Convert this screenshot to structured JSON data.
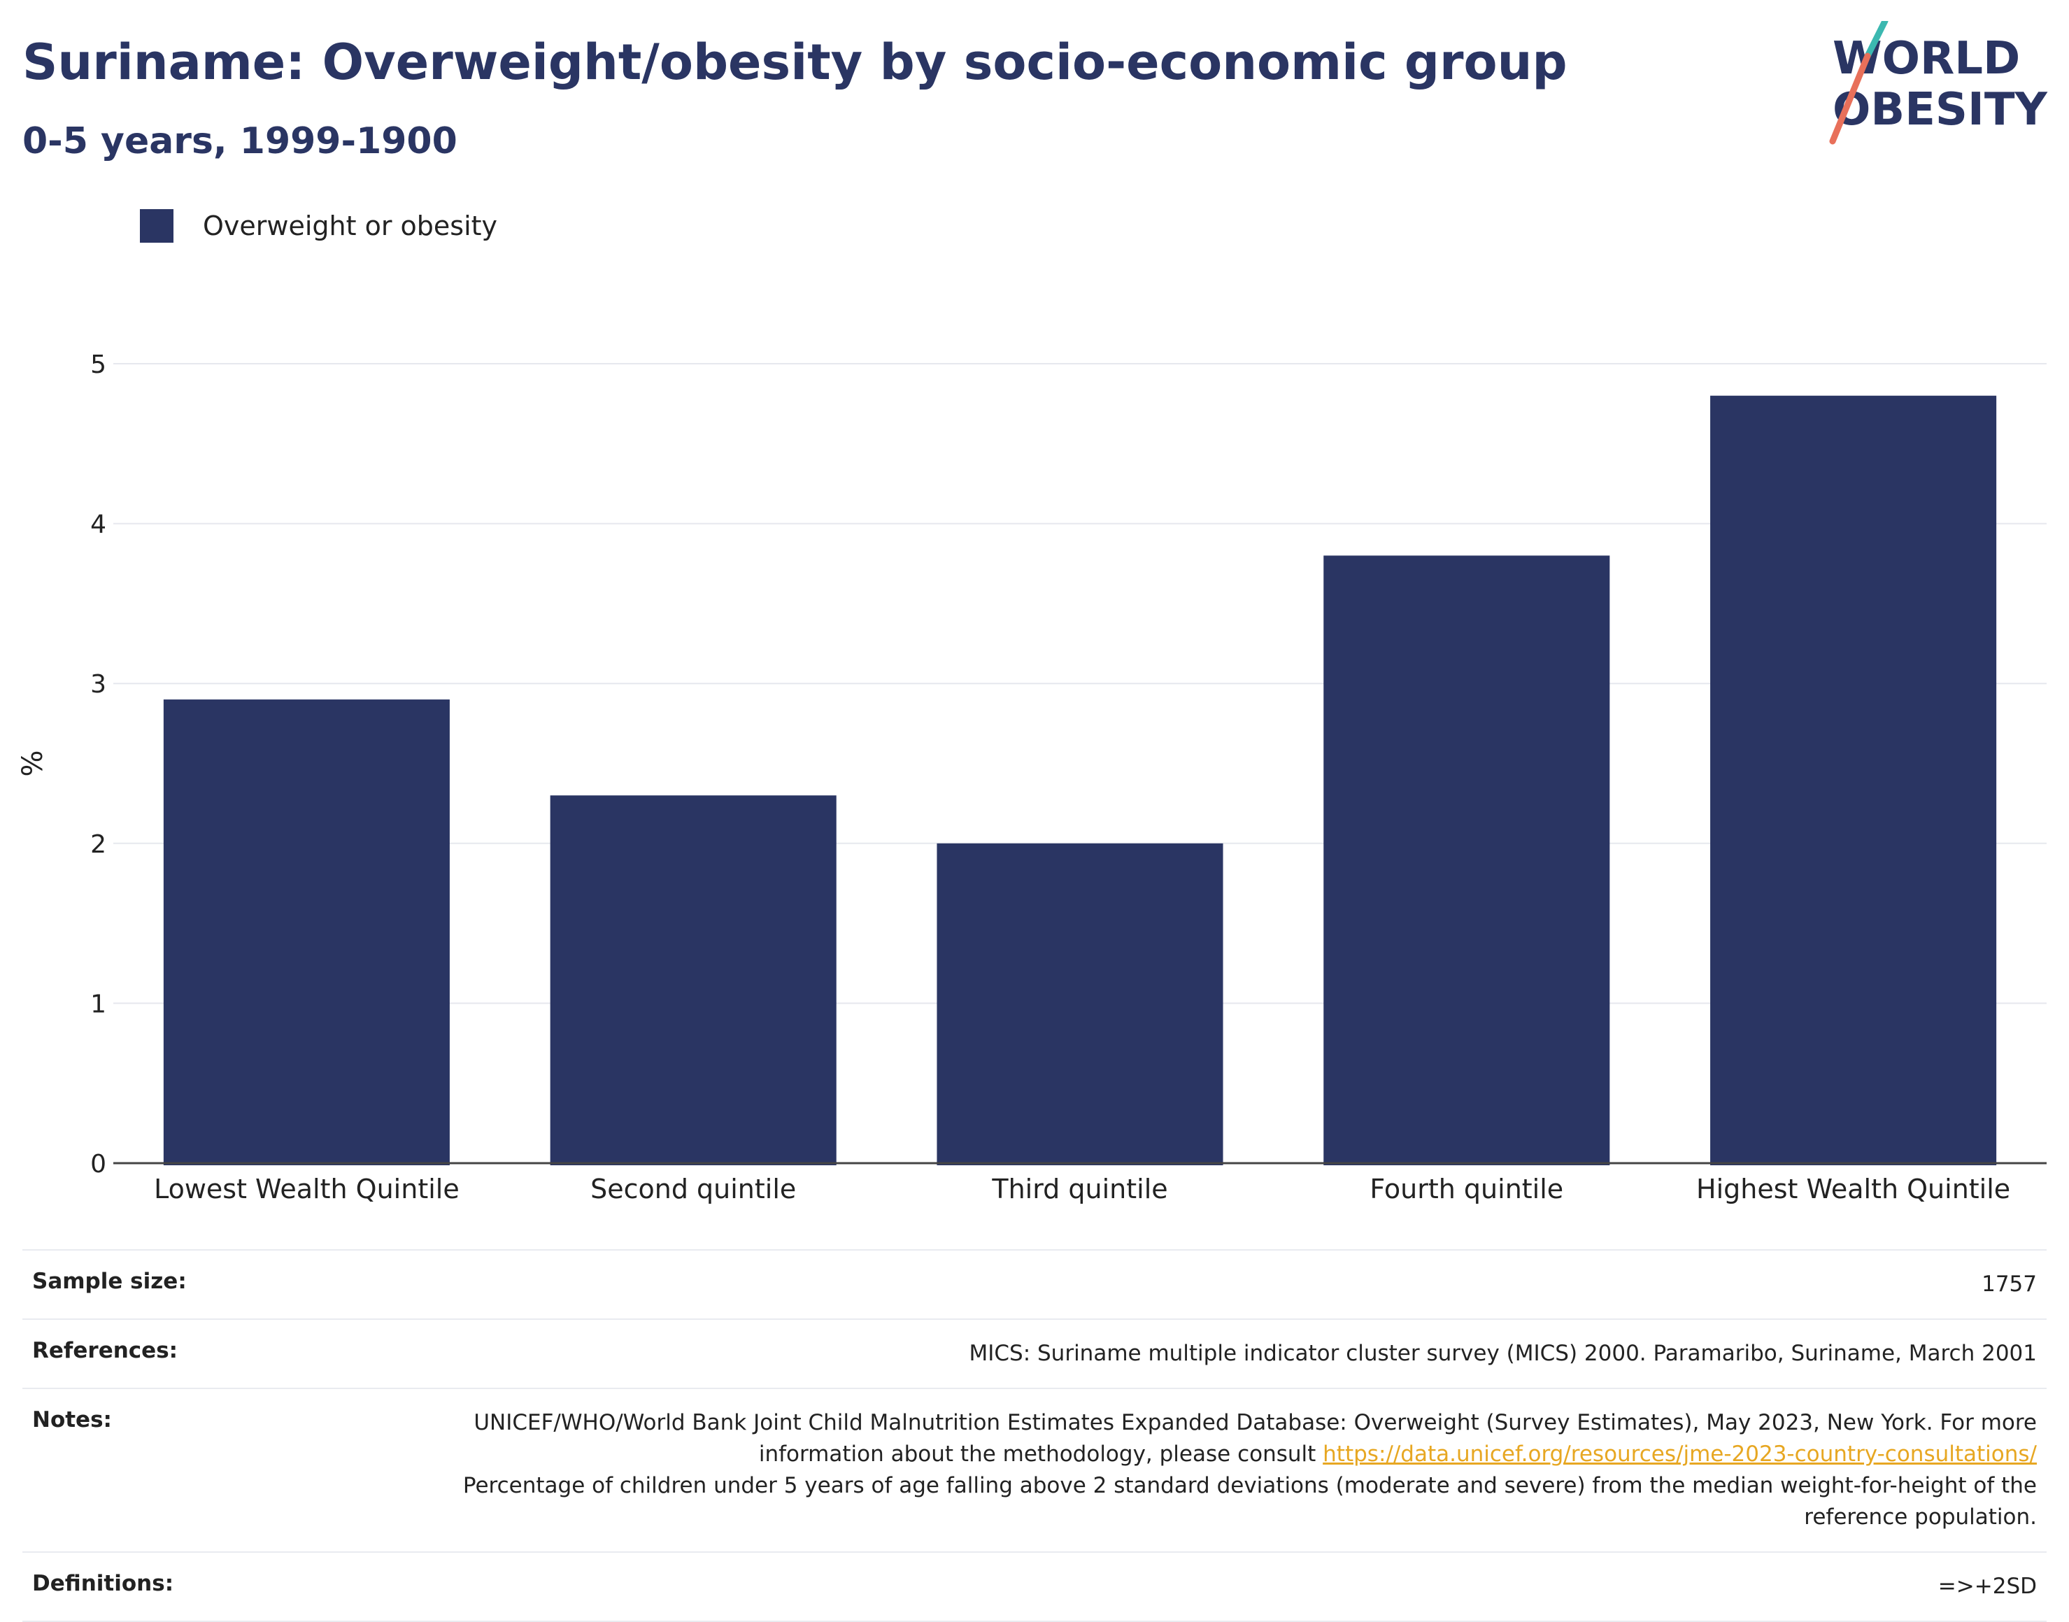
{
  "header": {
    "title": "Suriname: Overweight/obesity by socio-economic group",
    "subtitle": "0-5 years, 1999-1900"
  },
  "logo": {
    "line1": "WORLD",
    "line2": "OBESITY",
    "slash_colors": [
      "#3bb8b0",
      "#e8705a"
    ]
  },
  "legend": {
    "label": "Overweight or obesity",
    "color": "#2a3563"
  },
  "chart_data": {
    "type": "bar",
    "categories": [
      "Lowest Wealth Quintile",
      "Second quintile",
      "Third quintile",
      "Fourth quintile",
      "Highest Wealth Quintile"
    ],
    "series": [
      {
        "name": "Overweight or obesity",
        "values": [
          2.9,
          2.3,
          2.0,
          3.8,
          4.8
        ],
        "color": "#2a3563"
      }
    ],
    "ylabel": "%",
    "ylim": [
      0,
      5
    ],
    "yticks": [
      0,
      1,
      2,
      3,
      4,
      5
    ],
    "grid": true
  },
  "info": {
    "sample_size_label": "Sample size:",
    "sample_size_value": "1757",
    "references_label": "References:",
    "references_value": "MICS: Suriname multiple indicator cluster survey (MICS) 2000. Paramaribo, Suriname, March 2001",
    "notes_label": "Notes:",
    "notes_text_1": "UNICEF/WHO/World Bank Joint Child Malnutrition Estimates Expanded Database: Overweight (Survey Estimates), May 2023, New York. For more information about the methodology, please consult ",
    "notes_link": "https://data.unicef.org/resources/jme-2023-country-consultations/",
    "notes_text_2": "Percentage of children under 5 years of age falling above 2 standard deviations (moderate and severe) from the median weight-for-height of the reference population.",
    "definitions_label": "Definitions:",
    "definitions_value": "=>+2SD"
  }
}
